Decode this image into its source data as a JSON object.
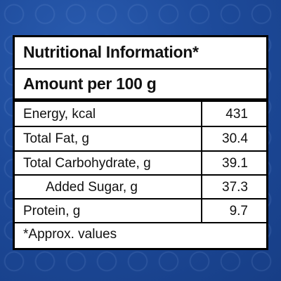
{
  "header": {
    "title": "Nutritional Information*",
    "subtitle": "Amount per 100 g"
  },
  "table": {
    "rows": [
      [
        "Energy, kcal",
        431
      ],
      [
        "Total Fat, g",
        30.4
      ],
      [
        "Total Carbohydrate, g",
        39.1
      ],
      [
        "Added Sugar, g",
        37.3
      ],
      [
        "Protein, g",
        9.7
      ]
    ]
  },
  "footnote": "*Approx. values"
}
